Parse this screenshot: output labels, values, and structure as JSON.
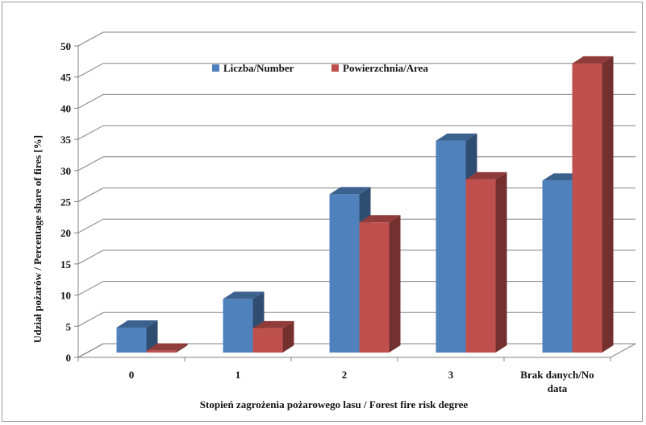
{
  "chart_data": {
    "type": "bar",
    "categories": [
      "0",
      "1",
      "2",
      "3",
      "Brak danych/No data"
    ],
    "category_lines": [
      [
        "0"
      ],
      [
        "1"
      ],
      [
        "2"
      ],
      [
        "3"
      ],
      [
        "Brak danych/No",
        "data"
      ]
    ],
    "series": [
      {
        "name": "Liczba/Number",
        "values": [
          4.0,
          8.6,
          25.4,
          34.0,
          27.6
        ],
        "color": "#4f81bd"
      },
      {
        "name": "Powierzchnia/Area",
        "values": [
          0.3,
          3.9,
          20.9,
          27.8,
          46.4
        ],
        "color": "#c0504d"
      }
    ],
    "xlabel": "Stopień zagrożenia pożarowego lasu / Forest fire risk degree",
    "ylabel": "Udział pożarów / Percentage share of fires [%]",
    "ylim": [
      0,
      50
    ],
    "yticks": [
      "0",
      "5",
      "10",
      "15",
      "20",
      "25",
      "30",
      "35",
      "40",
      "45",
      "50"
    ],
    "grid": true,
    "legend_position": "top-center",
    "style": "3d-clustered-column"
  }
}
